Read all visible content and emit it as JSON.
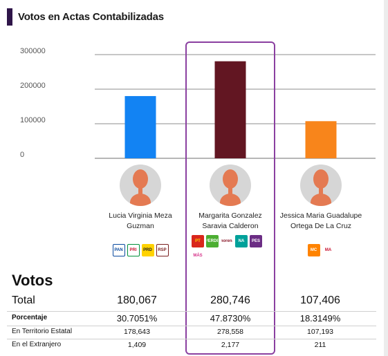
{
  "header": {
    "title": "Votos en Actas Contabilizadas",
    "accent": "#2f1549"
  },
  "chart_data": {
    "type": "bar",
    "title": "Votos en Actas Contabilizadas",
    "xlabel": "",
    "ylabel": "",
    "ylim": [
      0,
      300000
    ],
    "yticks": [
      0,
      100000,
      200000,
      300000
    ],
    "ytick_labels": [
      "0",
      "100000",
      "200000",
      "300000"
    ],
    "grid": true,
    "categories": [
      "Lucia Virginia Meza Guzman",
      "Margarita Gonzalez Saravia Calderon",
      "Jessica Maria Guadalupe Ortega De La Cruz"
    ],
    "values": [
      180067,
      280746,
      107406
    ],
    "colors": [
      "#1283f3",
      "#621622",
      "#f8851b"
    ]
  },
  "candidates": [
    {
      "name": "Lucia Virginia Meza Guzman",
      "logos": [
        {
          "icon": "pan-logo",
          "text": "PAN",
          "bg": "#ffffff",
          "fg": "#0a4a9f",
          "border": "#0a4a9f"
        },
        {
          "icon": "pri-logo",
          "text": "PRI",
          "bg": "#ffffff",
          "fg": "#c8102e",
          "border": "#008f39"
        },
        {
          "icon": "prd-logo",
          "text": "PRD",
          "bg": "#ffd200",
          "fg": "#222222",
          "border": "#ffd200"
        },
        {
          "icon": "local-party-logo",
          "text": "RSP",
          "bg": "#ffffff",
          "fg": "#7a1f1f",
          "border": "#7a1f1f"
        }
      ]
    },
    {
      "name": "Margarita Gonzalez Saravia Calderon",
      "logos": [
        {
          "icon": "pt-logo",
          "text": "PT",
          "bg": "#d9261c",
          "fg": "#ffd200",
          "border": "#d9261c"
        },
        {
          "icon": "pvem-logo",
          "text": "VERDE",
          "bg": "#4cae32",
          "fg": "#ffffff",
          "border": "#4cae32"
        },
        {
          "icon": "morena-logo",
          "text": "morena",
          "bg": "#ffffff",
          "fg": "#8b1a2b",
          "border": "#ffffff"
        },
        {
          "icon": "nueva-alianza-logo",
          "text": "NA",
          "bg": "#00a19a",
          "fg": "#ffffff",
          "border": "#00a19a"
        },
        {
          "icon": "pes-logo",
          "text": "PES",
          "bg": "#6b2d84",
          "fg": "#ffffff",
          "border": "#6b2d84"
        },
        {
          "icon": "mas-logo",
          "text": "MÁS",
          "bg": "#ffffff",
          "fg": "#d6338a",
          "border": "#ffffff"
        }
      ]
    },
    {
      "name": "Jessica Maria Guadalupe Ortega De La Cruz",
      "logos": [
        {
          "icon": "movimiento-ciudadano-logo",
          "text": "MC",
          "bg": "#ff8300",
          "fg": "#ffffff",
          "border": "#ff8300"
        },
        {
          "icon": "local-party-logo-2",
          "text": "MA",
          "bg": "#ffffff",
          "fg": "#c8102e",
          "border": "#ffffff"
        }
      ]
    }
  ],
  "votes": {
    "title": "Votos",
    "rows": [
      {
        "label": "Total",
        "values": [
          "180,067",
          "280,746",
          "107,406"
        ]
      },
      {
        "label": "Porcentaje",
        "values": [
          "30.7051%",
          "47.8730%",
          "18.3149%"
        ]
      },
      {
        "label": "En Territorio Estatal",
        "values": [
          "178,643",
          "278,558",
          "107,193"
        ]
      },
      {
        "label": "En el Extranjero",
        "values": [
          "1,409",
          "2,177",
          "211"
        ]
      }
    ]
  }
}
